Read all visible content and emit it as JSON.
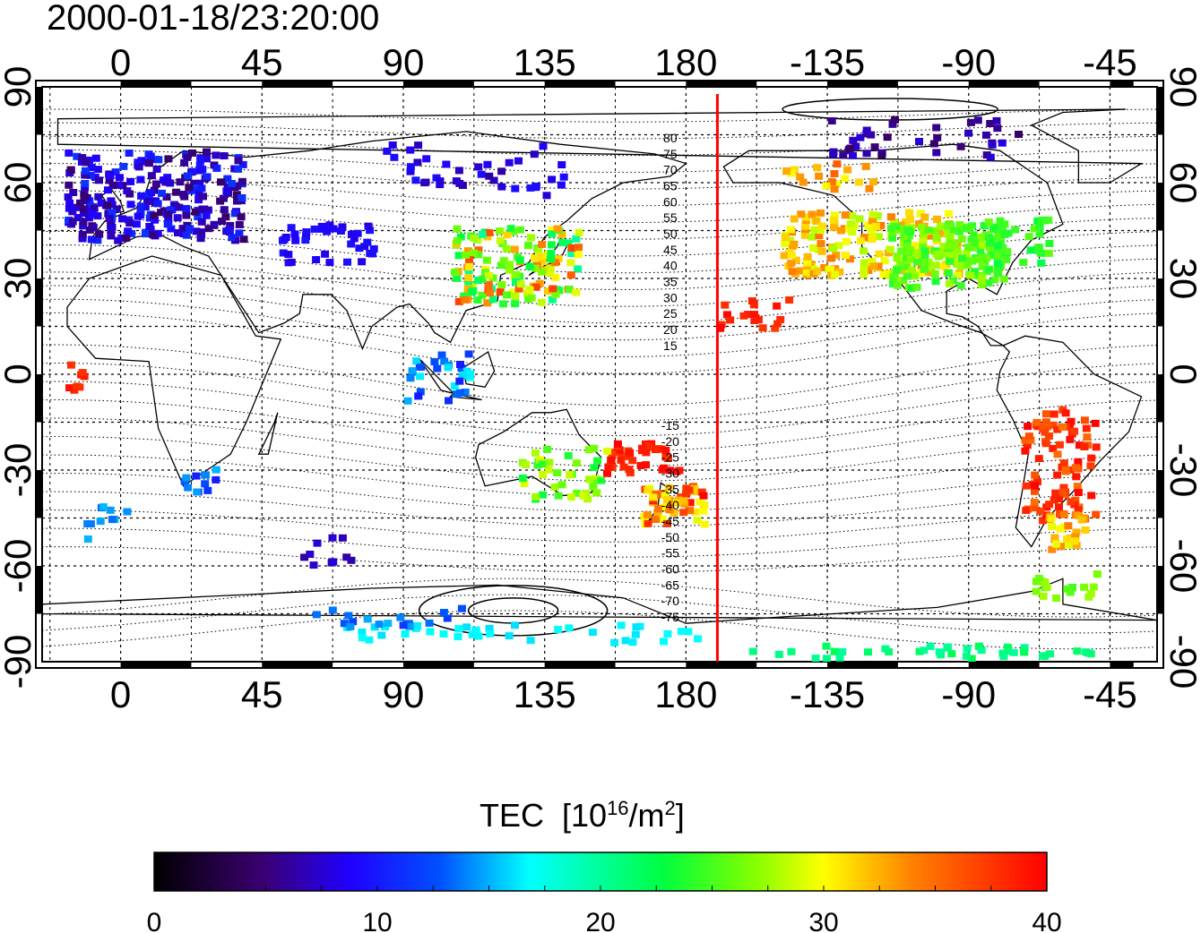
{
  "title": "2000-01-18/23:20:00",
  "map": {
    "lon_ticks_top": [
      "0",
      "45",
      "90",
      "135",
      "180",
      "-135",
      "-90",
      "-45"
    ],
    "lon_ticks_bottom": [
      "0",
      "45",
      "90",
      "135",
      "180",
      "-135",
      "-90",
      "-45"
    ],
    "lat_ticks": [
      "90",
      "60",
      "30",
      "0",
      "-30",
      "-60",
      "-90"
    ],
    "lon_tick_values": [
      0,
      45,
      90,
      135,
      180,
      225,
      270,
      315
    ],
    "lat_tick_values": [
      90,
      60,
      30,
      0,
      -30,
      -60,
      -90
    ],
    "lon_range": [
      -25,
      330
    ],
    "lat_range": [
      -90,
      90
    ],
    "terminator_lon": 190,
    "terminator_color": "#ff0000",
    "contour_labels_north": [
      "80",
      "75",
      "70",
      "65",
      "60",
      "55",
      "50",
      "45",
      "40",
      "35",
      "30",
      "25",
      "20",
      "15"
    ],
    "contour_labels_south": [
      "-15",
      "-20",
      "-25",
      "-30",
      "-35",
      "-40",
      "-45",
      "-50",
      "-55",
      "-60",
      "-65",
      "-70",
      "-75"
    ],
    "grid": true
  },
  "colorbar": {
    "label": "TEC",
    "unit_base": "10",
    "unit_exp": "16",
    "unit_tail": "/m",
    "unit_exp2": "2",
    "ticks": [
      "0",
      "10",
      "20",
      "30",
      "40"
    ],
    "tick_values": [
      0,
      10,
      20,
      30,
      40
    ],
    "range": [
      0,
      40
    ],
    "colormap": [
      "#000000",
      "#3a0070",
      "#2000ff",
      "#0050ff",
      "#00ffff",
      "#00ff40",
      "#80ff00",
      "#ffff00",
      "#ff8000",
      "#ff0000"
    ]
  }
}
